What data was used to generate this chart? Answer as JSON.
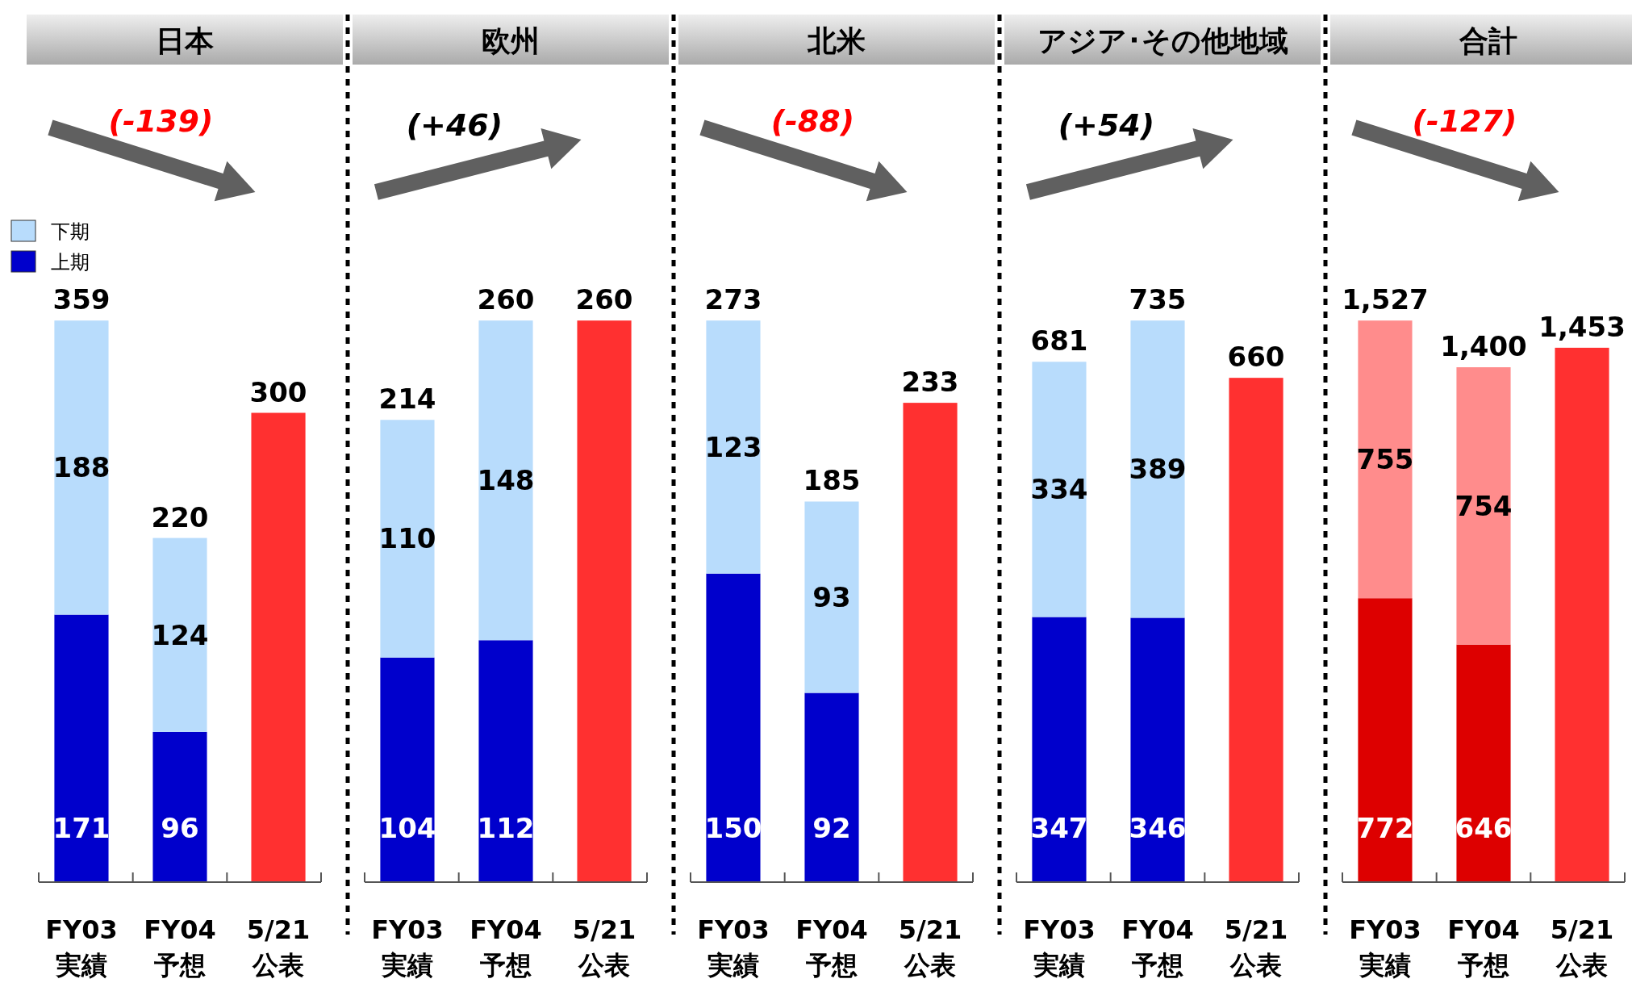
{
  "chart_data": [
    {
      "type": "bar",
      "title": "日本",
      "stacked": true,
      "legend": "left",
      "categories": [
        "FY03 実績",
        "FY04 予想",
        "5/21 公表"
      ],
      "series": [
        {
          "name": "上期",
          "color": "#0000cc",
          "values": [
            171,
            96,
            null
          ],
          "value_labels": [
            "171",
            "96",
            null
          ]
        },
        {
          "name": "下期",
          "color": "#b8dcfc",
          "values": [
            188,
            124,
            null
          ],
          "value_labels": [
            "188",
            "124",
            null
          ]
        },
        {
          "color": "#ff3030",
          "values": [
            null,
            null,
            300
          ]
        }
      ],
      "totals": [
        "359",
        "220",
        "300"
      ],
      "annotations": [
        "(-139)"
      ]
    },
    {
      "type": "bar",
      "title": "欧州",
      "stacked": true,
      "categories": [
        "FY03 実績",
        "FY04 予想",
        "5/21 公表"
      ],
      "series": [
        {
          "color": "#0000cc",
          "values": [
            104,
            112,
            null
          ],
          "value_labels": [
            "104",
            "112",
            null
          ]
        },
        {
          "color": "#b8dcfc",
          "values": [
            110,
            148,
            null
          ],
          "value_labels": [
            "110",
            "148",
            null
          ]
        },
        {
          "color": "#ff3030",
          "values": [
            null,
            null,
            260
          ]
        }
      ],
      "totals": [
        "214",
        "260",
        "260"
      ],
      "annotations": [
        "(+46)"
      ]
    },
    {
      "type": "bar",
      "title": "北米",
      "stacked": true,
      "categories": [
        "FY03 実績",
        "FY04 予想",
        "5/21 公表"
      ],
      "series": [
        {
          "color": "#0000cc",
          "values": [
            150,
            92,
            null
          ],
          "value_labels": [
            "150",
            "92",
            null
          ]
        },
        {
          "color": "#b8dcfc",
          "values": [
            123,
            93,
            null
          ],
          "value_labels": [
            "123",
            "93",
            null
          ]
        },
        {
          "color": "#ff3030",
          "values": [
            null,
            null,
            233
          ]
        }
      ],
      "totals": [
        "273",
        "185",
        "233"
      ],
      "annotations": [
        "(-88)"
      ]
    },
    {
      "type": "bar",
      "title": "アジア･その他地域",
      "stacked": true,
      "categories": [
        "FY03 実績",
        "FY04 予想",
        "5/21 公表"
      ],
      "series": [
        {
          "color": "#0000cc",
          "values": [
            347,
            346,
            null
          ],
          "value_labels": [
            "347",
            "346",
            null
          ]
        },
        {
          "color": "#b8dcfc",
          "values": [
            334,
            389,
            null
          ],
          "value_labels": [
            "334",
            "389",
            null
          ]
        },
        {
          "color": "#ff3030",
          "values": [
            null,
            null,
            660
          ]
        }
      ],
      "totals": [
        "681",
        "735",
        "660"
      ],
      "annotations": [
        "(+54)"
      ]
    },
    {
      "type": "bar",
      "title": "合計",
      "stacked": true,
      "categories": [
        "FY03 実績",
        "FY04 予想",
        "5/21 公表"
      ],
      "series": [
        {
          "color": "#dd0000",
          "values": [
            772,
            646,
            null
          ],
          "value_labels": [
            "772",
            "646",
            null
          ]
        },
        {
          "color": "#ff8c8c",
          "values": [
            755,
            754,
            null
          ],
          "value_labels": [
            "755",
            "754",
            null
          ]
        },
        {
          "color": "#ff3030",
          "values": [
            null,
            null,
            1453
          ]
        }
      ],
      "totals": [
        "1,527",
        "1,400",
        "1,453"
      ],
      "annotations": [
        "(-127)"
      ]
    }
  ]
}
